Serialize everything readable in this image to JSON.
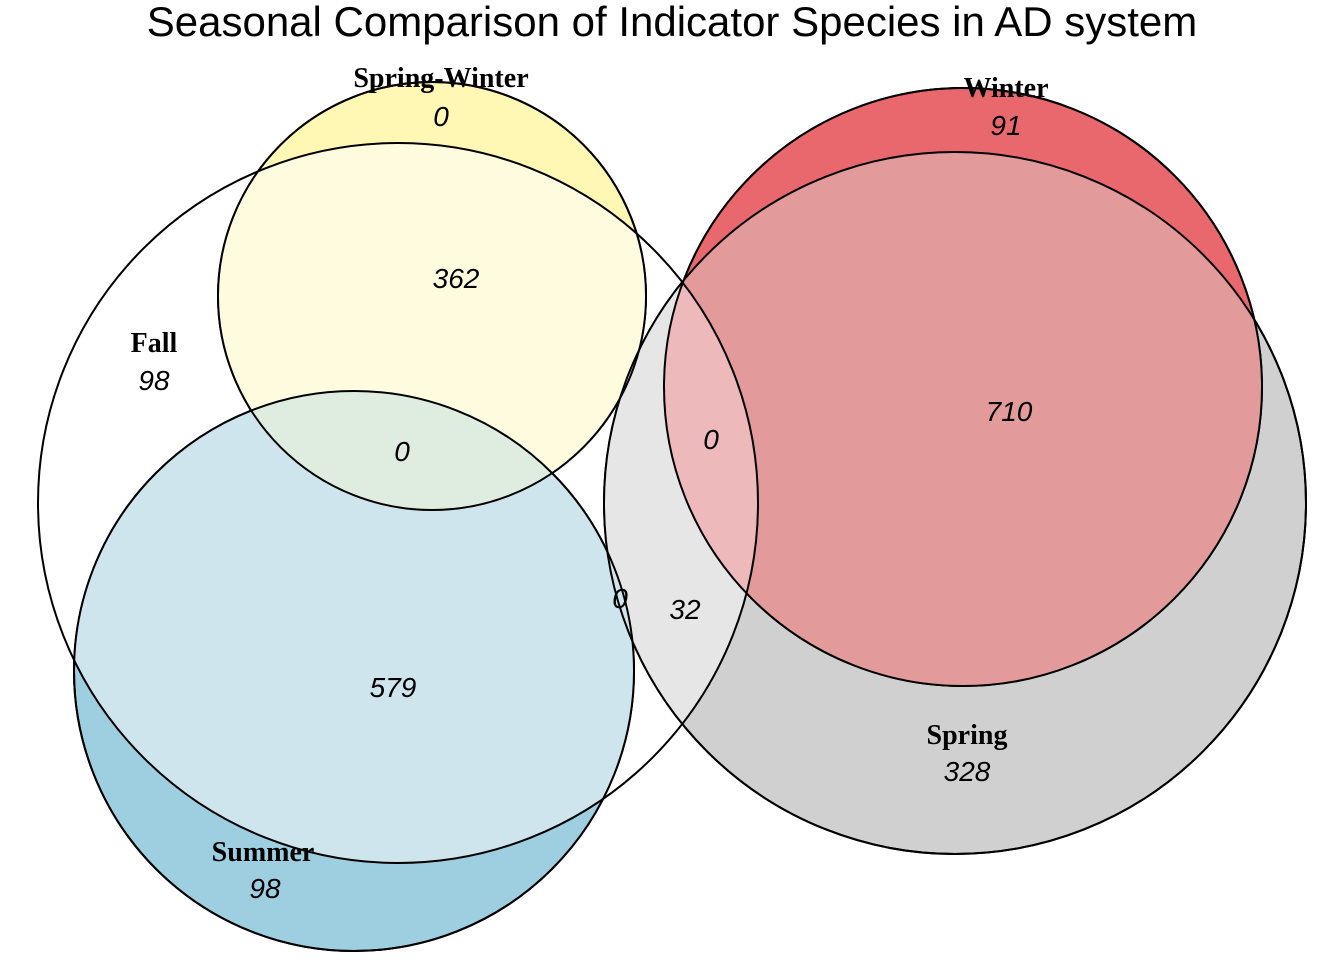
{
  "title": "Seasonal Comparison of Indicator Species in AD system",
  "sets": {
    "fall": {
      "label": "Fall",
      "color": "#ffffff"
    },
    "spring_winter": {
      "label": "Spring-Winter",
      "color": "#fff7b3"
    },
    "summer": {
      "label": "Summer",
      "color": "#9ecfe1"
    },
    "winter": {
      "label": "Winter",
      "color": "#e9686d"
    },
    "spring": {
      "label": "Spring",
      "color": "#d0d0d0"
    }
  },
  "regions": {
    "fall_only": "98",
    "spring_winter_only": "0",
    "fall_spring_winter": "362",
    "fall_spring_winter_summer": "0",
    "fall_summer": "579",
    "summer_only": "98",
    "winter_only": "91",
    "spring_winter_overlap": "710",
    "fall_spring_winter_overlap": "0",
    "fall_summer_spring": "0",
    "fall_spring": "32",
    "spring_only": "328"
  }
}
